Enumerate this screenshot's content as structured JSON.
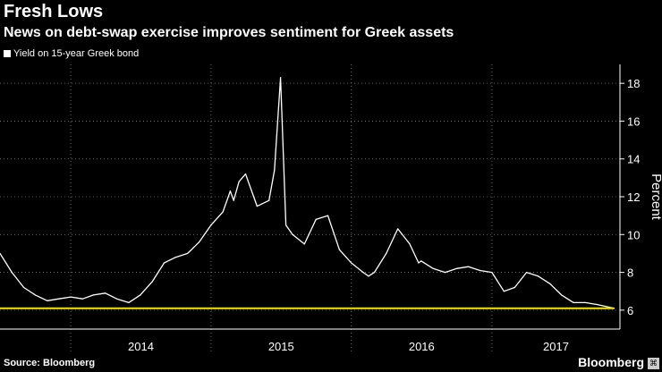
{
  "title": "Fresh Lows",
  "subtitle": "News on debt-swap exercise improves sentiment for Greek assets",
  "source": "Source: Bloomberg",
  "brand": "Bloomberg",
  "colors": {
    "background": "#000000",
    "series": "#ffffff",
    "reference_line": "#f2e600",
    "grid": "#808080"
  },
  "chart_data": {
    "type": "line",
    "title": "Fresh Lows",
    "subtitle": "News on debt-swap exercise improves sentiment for Greek assets",
    "xlabel": "",
    "ylabel": "Percent",
    "x_tick_labels": [
      "2014",
      "2015",
      "2016",
      "2017"
    ],
    "y_ticks": [
      6,
      8,
      10,
      12,
      14,
      16,
      18
    ],
    "ylim": [
      5,
      19
    ],
    "xlim": [
      "2013-07-01",
      "2017-11-30"
    ],
    "grid": true,
    "legend_position": "top-left",
    "reference_line": {
      "y": 6.1
    },
    "series": [
      {
        "name": "Yield on 15-year Greek bond",
        "x": [
          "2013-07-01",
          "2013-08-01",
          "2013-09-01",
          "2013-10-01",
          "2013-11-01",
          "2013-12-01",
          "2014-01-01",
          "2014-02-01",
          "2014-03-01",
          "2014-04-01",
          "2014-05-01",
          "2014-06-01",
          "2014-07-01",
          "2014-08-01",
          "2014-09-01",
          "2014-10-01",
          "2014-11-01",
          "2014-12-01",
          "2015-01-01",
          "2015-02-01",
          "2015-02-15",
          "2015-02-20",
          "2015-03-01",
          "2015-03-15",
          "2015-04-01",
          "2015-05-01",
          "2015-06-01",
          "2015-06-15",
          "2015-07-01",
          "2015-07-15",
          "2015-08-01",
          "2015-09-01",
          "2015-10-01",
          "2015-11-01",
          "2015-12-01",
          "2016-01-01",
          "2016-02-01",
          "2016-02-15",
          "2016-03-01",
          "2016-04-01",
          "2016-05-01",
          "2016-06-01",
          "2016-06-24",
          "2016-07-01",
          "2016-08-01",
          "2016-09-01",
          "2016-10-01",
          "2016-11-01",
          "2016-12-01",
          "2017-01-01",
          "2017-02-01",
          "2017-03-01",
          "2017-04-01",
          "2017-05-01",
          "2017-06-01",
          "2017-07-01",
          "2017-08-01",
          "2017-09-01",
          "2017-10-01",
          "2017-11-15"
        ],
        "values": [
          9.0,
          8.0,
          7.2,
          6.8,
          6.5,
          6.6,
          6.7,
          6.6,
          6.8,
          6.9,
          6.6,
          6.4,
          6.8,
          7.5,
          8.5,
          8.8,
          9.0,
          9.6,
          10.5,
          11.2,
          12.0,
          12.3,
          11.8,
          12.8,
          13.2,
          11.5,
          11.8,
          13.4,
          18.3,
          10.5,
          10.0,
          9.5,
          10.8,
          11.0,
          9.2,
          8.5,
          8.0,
          7.8,
          8.0,
          9.0,
          10.3,
          9.5,
          8.5,
          8.6,
          8.2,
          8.0,
          8.2,
          8.3,
          8.1,
          8.0,
          7.0,
          7.2,
          8.0,
          7.8,
          7.4,
          6.8,
          6.4,
          6.4,
          6.3,
          6.1
        ]
      }
    ]
  }
}
